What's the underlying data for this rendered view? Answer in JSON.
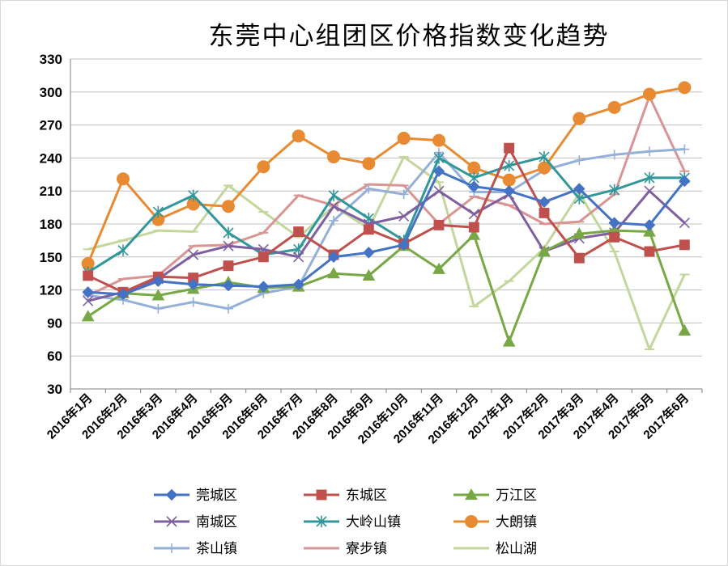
{
  "chart_data": {
    "type": "line",
    "title": "东莞中心组团区价格指数变化趋势",
    "xlabel": "",
    "ylabel": "",
    "ylim": [
      30,
      330
    ],
    "yticks": [
      30,
      60,
      90,
      120,
      150,
      180,
      210,
      240,
      270,
      300,
      330
    ],
    "grid": "horizontal",
    "legend_position": "bottom",
    "categories": [
      "2016年1月",
      "2016年2月",
      "2016年3月",
      "2016年4月",
      "2016年5月",
      "2016年6月",
      "2016年7月",
      "2016年8月",
      "2016年9月",
      "2016年10月",
      "2016年11月",
      "2016年12月",
      "2017年1月",
      "2017年2月",
      "2017年3月",
      "2017年4月",
      "2017年5月",
      "2017年6月"
    ],
    "series": [
      {
        "name": "莞城区",
        "color": "#4472C4",
        "marker": "diamond",
        "values": [
          118,
          116,
          128,
          125,
          124,
          123,
          125,
          150,
          154,
          161,
          228,
          214,
          210,
          200,
          212,
          181,
          179,
          219
        ]
      },
      {
        "name": "东城区",
        "color": "#C0504D",
        "marker": "square",
        "values": [
          133,
          118,
          132,
          131,
          142,
          150,
          173,
          152,
          175,
          162,
          179,
          177,
          249,
          190,
          149,
          168,
          155,
          161
        ]
      },
      {
        "name": "万江区",
        "color": "#77A845",
        "marker": "triangle",
        "values": [
          96,
          117,
          115,
          121,
          127,
          122,
          123,
          135,
          133,
          160,
          139,
          170,
          73,
          155,
          171,
          174,
          173,
          83
        ]
      },
      {
        "name": "南城区",
        "color": "#7F5F9F",
        "marker": "x",
        "values": [
          110,
          118,
          130,
          152,
          160,
          157,
          150,
          196,
          180,
          187,
          210,
          189,
          207,
          155,
          167,
          172,
          210,
          181
        ]
      },
      {
        "name": "大岭山镇",
        "color": "#31979B",
        "marker": "asterisk",
        "values": [
          136,
          156,
          191,
          206,
          172,
          152,
          157,
          206,
          185,
          165,
          240,
          222,
          233,
          241,
          203,
          211,
          222,
          222
        ]
      },
      {
        "name": "大朗镇",
        "color": "#E88A32",
        "marker": "circle",
        "values": [
          144,
          221,
          184,
          198,
          196,
          232,
          260,
          241,
          235,
          258,
          256,
          231,
          220,
          231,
          276,
          286,
          298,
          304
        ]
      },
      {
        "name": "茶山镇",
        "color": "#95B0D8",
        "marker": "plus",
        "values": [
          115,
          111,
          103,
          109,
          103,
          117,
          123,
          183,
          212,
          207,
          245,
          209,
          209,
          229,
          238,
          243,
          246,
          248
        ]
      },
      {
        "name": "寮步镇",
        "color": "#D99594",
        "marker": "dash",
        "values": [
          115,
          130,
          133,
          160,
          161,
          172,
          206,
          197,
          216,
          215,
          180,
          205,
          197,
          180,
          182,
          207,
          296,
          228
        ]
      },
      {
        "name": "松山湖",
        "color": "#C3D69B",
        "marker": "dash",
        "values": [
          157,
          165,
          174,
          173,
          215,
          191,
          168,
          196,
          176,
          241,
          218,
          105,
          128,
          158,
          208,
          155,
          66,
          134
        ]
      }
    ]
  }
}
